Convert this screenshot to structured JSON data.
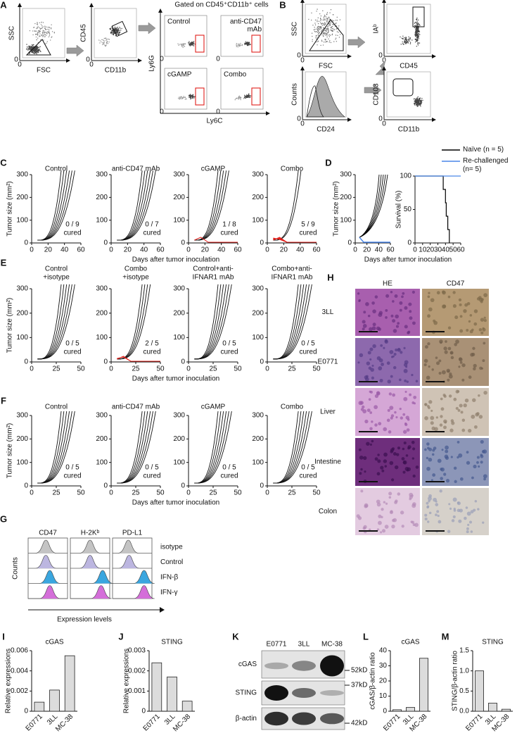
{
  "figure": {
    "zero": "0",
    "A": {
      "letter": "A",
      "gate_title": "Gated on CD45⁺CD11b⁺ cells",
      "plots": [
        {
          "y": "SSC",
          "x": "FSC"
        },
        {
          "y": "CD45",
          "x": "CD11b"
        }
      ],
      "y_label": "Ly6G",
      "x_label": "Ly6C",
      "groups": [
        [
          "Control"
        ],
        [
          "anti-CD47",
          "mAb"
        ],
        [
          "cGAMP"
        ],
        [
          "Combo"
        ]
      ]
    },
    "B": {
      "letter": "B",
      "plots": [
        {
          "y": "SSC",
          "x": "FSC"
        },
        {
          "y": "IAᵇ",
          "x": "CD45"
        },
        {
          "y": "Counts",
          "x": "CD24"
        },
        {
          "y": "CD103",
          "x": "CD11b"
        }
      ]
    },
    "C": {
      "letter": "C",
      "y_label": "Tumor size (mm²)",
      "x_label": "Days after tumor inoculation",
      "ylim": [
        0,
        300
      ],
      "yticks": [
        0,
        100,
        200,
        300
      ],
      "xlim": [
        0,
        60
      ],
      "xticks": [
        0,
        20,
        40,
        60
      ],
      "groups": [
        {
          "title": [
            "Control"
          ],
          "cured": [
            "0 / 9",
            "cured"
          ]
        },
        {
          "title": [
            "anti-CD47 mAb"
          ],
          "cured": [
            "0 / 7",
            "cured"
          ]
        },
        {
          "title": [
            "cGAMP"
          ],
          "cured": [
            "1 / 8",
            "cured"
          ],
          "cured_color": "#e0201b"
        },
        {
          "title": [
            "Combo"
          ],
          "cured": [
            "5 / 9",
            "cured"
          ],
          "cured_color": "#e0201b"
        }
      ]
    },
    "D": {
      "letter": "D",
      "y_label": "Tumor size (mm²)",
      "x_label": "Days after tumor inoculation",
      "ylim": [
        0,
        300
      ],
      "yticks": [
        0,
        100,
        200,
        300
      ],
      "xlim": [
        0,
        60
      ],
      "xticks": [
        0,
        20,
        40,
        60
      ]
    },
    "E": {
      "letter": "E",
      "y_label": "Tumor size (mm²)",
      "x_label": "Days after tumor inoculation",
      "ylim": [
        0,
        300
      ],
      "yticks": [
        0,
        100,
        200,
        300
      ],
      "xlim": [
        0,
        50
      ],
      "xticks": [
        0,
        25,
        50
      ],
      "groups": [
        {
          "title": [
            "Control",
            "+isotype"
          ],
          "cured": [
            "0 / 5",
            "cured"
          ]
        },
        {
          "title": [
            "Combo",
            "+isotype"
          ],
          "cured": [
            "2 / 5",
            "cured"
          ],
          "cured_color": "#e0201b"
        },
        {
          "title": [
            "Control+anti-",
            "IFNAR1 mAb"
          ],
          "cured": [
            "0 / 5",
            "cured"
          ]
        },
        {
          "title": [
            "Combo+anti-",
            "IFNAR1 mAb"
          ],
          "cured": [
            "0 / 5",
            "cured"
          ]
        }
      ]
    },
    "F": {
      "letter": "F",
      "y_label": "Tumor size (mm²)",
      "x_label": "Days after tumor inoculation",
      "ylim": [
        0,
        300
      ],
      "yticks": [
        0,
        100,
        200,
        300
      ],
      "xlim": [
        0,
        50
      ],
      "xticks": [
        0,
        25,
        50
      ],
      "groups": [
        {
          "title": [
            "Control"
          ],
          "cured": [
            "0 / 5",
            "cured"
          ]
        },
        {
          "title": [
            "anti-CD47 mAb"
          ],
          "cured": [
            "0 / 5",
            "cured"
          ]
        },
        {
          "title": [
            "cGAMP"
          ],
          "cured": [
            "0 / 5",
            "cured"
          ]
        },
        {
          "title": [
            "Combo"
          ],
          "cured": [
            "0 / 5",
            "cured"
          ]
        }
      ]
    },
    "G": {
      "letter": "G",
      "columns": [
        "CD47",
        "H-2Kᵇ",
        "PD-L1"
      ],
      "rows": [
        "isotype",
        "Control",
        "IFN-β",
        "IFN-γ"
      ],
      "row_colors": [
        "#c4c4c4",
        "#bcb6e0",
        "#3aa6df",
        "#d46ed9"
      ],
      "y_label": "Counts",
      "x_label": "Expression levels"
    },
    "H": {
      "letter": "H",
      "columns": [
        "HE",
        "CD47"
      ],
      "rows": [
        "3LL",
        "E0771",
        "Liver",
        "Intestine",
        "Colon"
      ]
    },
    "I": {
      "letter": "I"
    },
    "J": {
      "letter": "J"
    },
    "K": {
      "letter": "K",
      "lanes": [
        "E0771",
        "3LL",
        "MC-38"
      ],
      "rows": [
        "cGAS",
        "STING",
        "β-actin"
      ],
      "markers": [
        "52kD",
        "37kD",
        "42kD"
      ]
    },
    "L": {
      "letter": "L"
    },
    "M": {
      "letter": "M"
    }
  },
  "chart_data": [
    {
      "type": "line",
      "y_label": "Survival (%)",
      "xlim": [
        0,
        60
      ],
      "xticks": [
        0,
        10,
        20,
        30,
        40,
        50,
        60
      ],
      "ylim": [
        0,
        100
      ],
      "yticks": [
        0,
        50,
        100
      ],
      "series": [
        {
          "name": "Naïve (n = 5)",
          "color": "#000000",
          "x": [
            0,
            37,
            37,
            40,
            40,
            41,
            41,
            43,
            43,
            45,
            45
          ],
          "values": [
            100,
            100,
            80,
            80,
            60,
            60,
            40,
            40,
            20,
            20,
            0
          ]
        },
        {
          "name": "Re-challenged (n= 5)",
          "color": "#4a86e8",
          "x": [
            0,
            60
          ],
          "values": [
            100,
            100
          ]
        }
      ]
    },
    {
      "type": "bar",
      "title": "cGAS",
      "y_label": "Relative expressions",
      "categories": [
        "E0771",
        "3LL",
        "MC-38"
      ],
      "values": [
        0.0009,
        0.0021,
        0.0055
      ],
      "ylim": [
        0,
        0.006
      ],
      "yticks": [
        0,
        0.002,
        0.004,
        0.006
      ],
      "color": "#dcdcdc"
    },
    {
      "type": "bar",
      "title": "STING",
      "y_label": "Relative expressions",
      "categories": [
        "E0771",
        "3LL",
        "MC-38"
      ],
      "values": [
        0.0024,
        0.0017,
        0.0005
      ],
      "ylim": [
        0,
        0.003
      ],
      "yticks": [
        0,
        0.001,
        0.002,
        0.003
      ],
      "color": "#dcdcdc"
    },
    {
      "type": "bar",
      "title": "cGAS",
      "y_label": "cGAS/β-actin ratio",
      "categories": [
        "E0771",
        "3LL",
        "MC-38"
      ],
      "values": [
        1,
        2.5,
        35
      ],
      "ylim": [
        0,
        40
      ],
      "yticks": [
        0,
        10,
        20,
        30,
        40
      ],
      "color": "#dcdcdc"
    },
    {
      "type": "bar",
      "title": "STING",
      "y_label": "STING/β-actin ratio",
      "categories": [
        "E0771",
        "3LL",
        "MC-38"
      ],
      "values": [
        1,
        0.2,
        0.05
      ],
      "ylim": [
        0,
        1.5
      ],
      "yticks": [
        {
          "value": 0,
          "label": "0.0"
        },
        0.5,
        {
          "value": 1,
          "label": "1.0"
        },
        {
          "value": 1.5,
          "label": "1.5"
        }
      ],
      "color": "#dcdcdc"
    }
  ]
}
